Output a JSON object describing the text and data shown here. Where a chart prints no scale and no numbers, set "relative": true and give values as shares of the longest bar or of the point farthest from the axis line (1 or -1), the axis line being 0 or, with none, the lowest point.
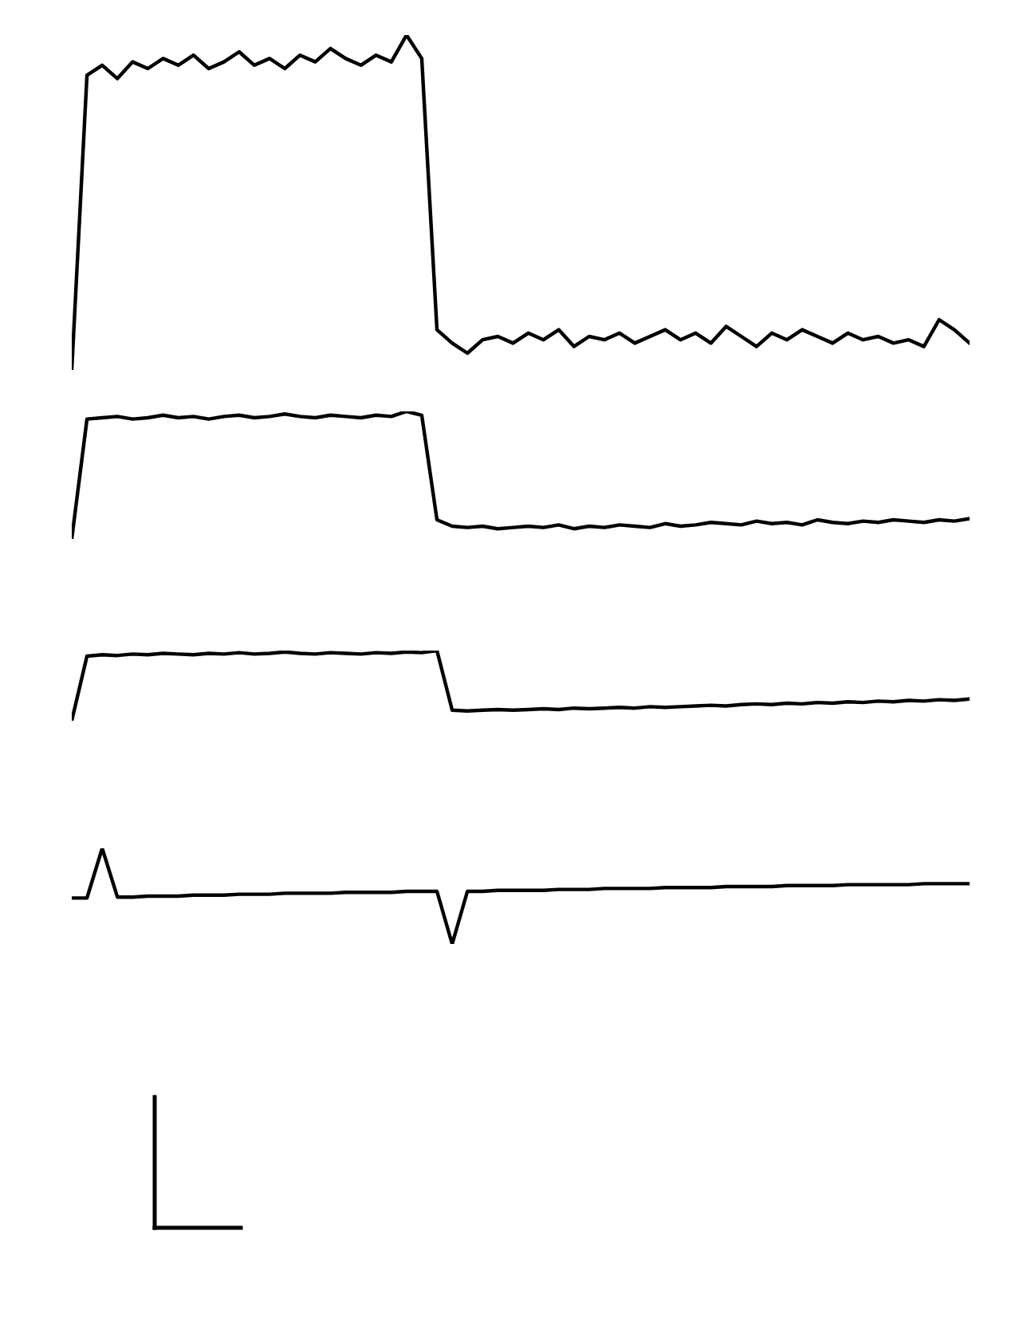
{
  "chart_data": [
    {
      "type": "line",
      "relative": true,
      "tick_labels": false,
      "grid": false,
      "categories": [
        null,
        null,
        null,
        null,
        null,
        null,
        null,
        null,
        null,
        null,
        null,
        null,
        null,
        null,
        null,
        null,
        null,
        null,
        null,
        null,
        null,
        null,
        null,
        null,
        null,
        null,
        null,
        null,
        null,
        null,
        null,
        null,
        null,
        null,
        null,
        null,
        null,
        null,
        null,
        null,
        null,
        null,
        null,
        null,
        null,
        null,
        null,
        null,
        null,
        null,
        null,
        null,
        null,
        null,
        null,
        null,
        null,
        null,
        null,
        null
      ],
      "series": [
        {
          "color": "#000000",
          "values": [
            0,
            0.88,
            0.91,
            0.87,
            0.92,
            0.9,
            0.93,
            0.91,
            0.94,
            0.9,
            0.92,
            0.95,
            0.91,
            0.93,
            0.9,
            0.94,
            0.92,
            0.96,
            0.93,
            0.91,
            0.94,
            0.92,
            1.0,
            0.93,
            0.12,
            0.08,
            0.05,
            0.09,
            0.1,
            0.08,
            0.11,
            0.09,
            0.12,
            0.07,
            0.1,
            0.09,
            0.11,
            0.08,
            0.1,
            0.12,
            0.09,
            0.11,
            0.08,
            0.13,
            0.1,
            0.07,
            0.11,
            0.09,
            0.12,
            0.1,
            0.08,
            0.11,
            0.09,
            0.1,
            0.08,
            0.09,
            0.07,
            0.15,
            0.12,
            0.08
          ]
        }
      ]
    },
    {
      "type": "line",
      "relative": true,
      "tick_labels": false,
      "grid": false,
      "categories": [
        null,
        null,
        null,
        null,
        null,
        null,
        null,
        null,
        null,
        null,
        null,
        null,
        null,
        null,
        null,
        null,
        null,
        null,
        null,
        null,
        null,
        null,
        null,
        null,
        null,
        null,
        null,
        null,
        null,
        null,
        null,
        null,
        null,
        null,
        null,
        null,
        null,
        null,
        null,
        null,
        null,
        null,
        null,
        null,
        null,
        null,
        null,
        null,
        null,
        null,
        null,
        null,
        null,
        null,
        null,
        null,
        null,
        null,
        null,
        null
      ],
      "series": [
        {
          "color": "#000000",
          "values": [
            0,
            0.94,
            0.95,
            0.96,
            0.94,
            0.95,
            0.97,
            0.95,
            0.96,
            0.94,
            0.96,
            0.97,
            0.95,
            0.96,
            0.98,
            0.96,
            0.95,
            0.97,
            0.96,
            0.95,
            0.97,
            0.96,
            1.0,
            0.97,
            0.15,
            0.1,
            0.09,
            0.1,
            0.08,
            0.09,
            0.1,
            0.09,
            0.11,
            0.08,
            0.1,
            0.09,
            0.11,
            0.1,
            0.09,
            0.12,
            0.1,
            0.11,
            0.13,
            0.12,
            0.11,
            0.14,
            0.12,
            0.13,
            0.11,
            0.15,
            0.13,
            0.12,
            0.14,
            0.13,
            0.15,
            0.14,
            0.13,
            0.15,
            0.14,
            0.16
          ]
        }
      ]
    },
    {
      "type": "line",
      "relative": true,
      "tick_labels": false,
      "grid": false,
      "categories": [
        null,
        null,
        null,
        null,
        null,
        null,
        null,
        null,
        null,
        null,
        null,
        null,
        null,
        null,
        null,
        null,
        null,
        null,
        null,
        null,
        null,
        null,
        null,
        null,
        null,
        null,
        null,
        null,
        null,
        null,
        null,
        null,
        null,
        null,
        null,
        null,
        null,
        null,
        null,
        null,
        null,
        null,
        null,
        null,
        null,
        null,
        null,
        null,
        null,
        null,
        null,
        null,
        null,
        null,
        null,
        null,
        null,
        null,
        null,
        null
      ],
      "series": [
        {
          "color": "#000000",
          "values": [
            0,
            0.92,
            0.94,
            0.93,
            0.95,
            0.94,
            0.96,
            0.95,
            0.94,
            0.96,
            0.95,
            0.97,
            0.95,
            0.96,
            0.98,
            0.96,
            0.95,
            0.97,
            0.96,
            0.95,
            0.97,
            0.96,
            0.98,
            0.97,
            1.0,
            0.15,
            0.14,
            0.15,
            0.16,
            0.15,
            0.16,
            0.17,
            0.16,
            0.18,
            0.17,
            0.18,
            0.19,
            0.18,
            0.2,
            0.19,
            0.2,
            0.21,
            0.22,
            0.21,
            0.23,
            0.24,
            0.23,
            0.25,
            0.24,
            0.26,
            0.25,
            0.27,
            0.26,
            0.28,
            0.27,
            0.29,
            0.28,
            0.3,
            0.29,
            0.31
          ]
        }
      ]
    },
    {
      "type": "line",
      "relative": true,
      "tick_labels": false,
      "grid": false,
      "categories": [
        null,
        null,
        null,
        null,
        null,
        null,
        null,
        null,
        null,
        null,
        null,
        null,
        null,
        null,
        null,
        null,
        null,
        null,
        null,
        null,
        null,
        null,
        null,
        null,
        null,
        null,
        null,
        null,
        null,
        null,
        null,
        null,
        null,
        null,
        null,
        null,
        null,
        null,
        null,
        null,
        null,
        null,
        null,
        null,
        null,
        null,
        null,
        null,
        null,
        null,
        null,
        null,
        null,
        null,
        null,
        null,
        null,
        null,
        null,
        null
      ],
      "series": [
        {
          "color": "#000000",
          "values": [
            0.48,
            0.48,
            1.0,
            0.49,
            0.49,
            0.5,
            0.5,
            0.5,
            0.51,
            0.51,
            0.51,
            0.52,
            0.52,
            0.52,
            0.53,
            0.53,
            0.53,
            0.53,
            0.54,
            0.54,
            0.54,
            0.54,
            0.55,
            0.55,
            0.55,
            0,
            0.55,
            0.55,
            0.56,
            0.56,
            0.56,
            0.56,
            0.57,
            0.57,
            0.57,
            0.58,
            0.58,
            0.58,
            0.58,
            0.59,
            0.59,
            0.59,
            0.59,
            0.6,
            0.6,
            0.6,
            0.6,
            0.61,
            0.61,
            0.61,
            0.61,
            0.62,
            0.62,
            0.62,
            0.62,
            0.62,
            0.63,
            0.63,
            0.63,
            0.63
          ]
        }
      ]
    }
  ]
}
